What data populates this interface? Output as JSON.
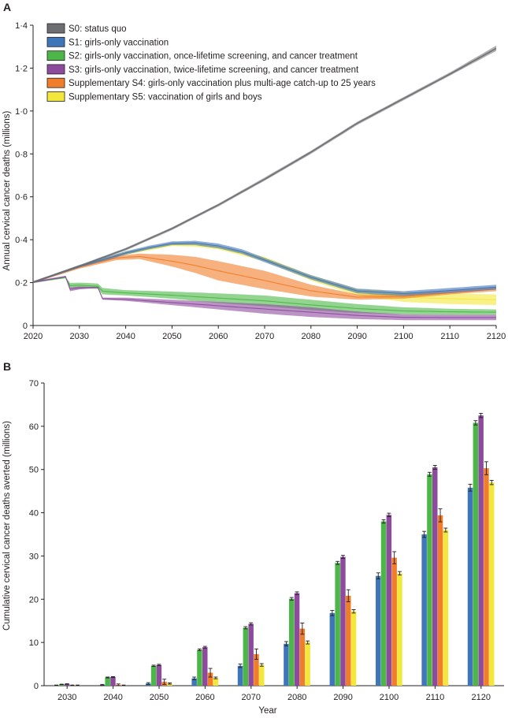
{
  "figure": {
    "colors": {
      "S0": "#6d6e71",
      "S1": "#3f75b9",
      "S2": "#4cb748",
      "S3": "#8e4b9e",
      "S4": "#f07d2a",
      "S5": "#f3e73c",
      "axis": "#231f20"
    }
  },
  "chart_data": [
    {
      "panel": "A",
      "type": "area",
      "title": "",
      "xlabel": "",
      "ylabel": "Annual cervical cancer deaths (millions)",
      "xlim": [
        2020,
        2120
      ],
      "ylim": [
        0,
        1.4
      ],
      "xticks": [
        "2020",
        "2030",
        "2040",
        "2050",
        "2060",
        "2070",
        "2080",
        "2090",
        "2100",
        "2110",
        "2120"
      ],
      "yticks": [
        "0",
        "0·2",
        "0·4",
        "0·6",
        "0·8",
        "1·0",
        "1·2",
        "1·4"
      ],
      "legend": {
        "placement": "top-left"
      },
      "series": [
        {
          "key": "S0",
          "name": "S0: status quo",
          "x": [
            2020,
            2030,
            2040,
            2050,
            2060,
            2070,
            2080,
            2090,
            2100,
            2110,
            2120
          ],
          "lower": [
            0.198,
            0.272,
            0.35,
            0.445,
            0.555,
            0.675,
            0.8,
            0.935,
            1.05,
            1.165,
            1.28
          ],
          "upper": [
            0.206,
            0.282,
            0.362,
            0.458,
            0.568,
            0.69,
            0.815,
            0.95,
            1.065,
            1.18,
            1.305
          ],
          "mid": [
            0.202,
            0.277,
            0.356,
            0.452,
            0.562,
            0.682,
            0.808,
            0.943,
            1.058,
            1.172,
            1.292
          ]
        },
        {
          "key": "S1",
          "name": "S1: girls-only vaccination",
          "x": [
            2020,
            2030,
            2040,
            2045,
            2050,
            2055,
            2060,
            2065,
            2070,
            2080,
            2090,
            2100,
            2110,
            2120
          ],
          "lower": [
            0.198,
            0.27,
            0.33,
            0.355,
            0.375,
            0.375,
            0.36,
            0.335,
            0.295,
            0.215,
            0.15,
            0.138,
            0.152,
            0.168
          ],
          "upper": [
            0.206,
            0.282,
            0.346,
            0.372,
            0.392,
            0.395,
            0.382,
            0.356,
            0.315,
            0.235,
            0.172,
            0.16,
            0.175,
            0.19
          ],
          "mid": [
            0.202,
            0.276,
            0.338,
            0.363,
            0.383,
            0.385,
            0.371,
            0.345,
            0.305,
            0.225,
            0.161,
            0.149,
            0.163,
            0.179
          ]
        },
        {
          "key": "S2",
          "name": "S2: girls-only vaccination, once-lifetime screening, and cancer treatment",
          "x": [
            2020,
            2027,
            2028,
            2030,
            2034,
            2035,
            2040,
            2050,
            2060,
            2070,
            2080,
            2090,
            2100,
            2110,
            2120
          ],
          "lower": [
            0.198,
            0.22,
            0.175,
            0.175,
            0.17,
            0.145,
            0.14,
            0.125,
            0.105,
            0.09,
            0.072,
            0.058,
            0.052,
            0.05,
            0.05
          ],
          "upper": [
            0.206,
            0.228,
            0.198,
            0.2,
            0.196,
            0.175,
            0.165,
            0.158,
            0.15,
            0.14,
            0.12,
            0.1,
            0.085,
            0.078,
            0.075
          ],
          "mid": [
            0.202,
            0.224,
            0.186,
            0.188,
            0.183,
            0.16,
            0.152,
            0.141,
            0.128,
            0.115,
            0.096,
            0.079,
            0.068,
            0.064,
            0.062
          ]
        },
        {
          "key": "S3",
          "name": "S3: girls-only vaccination, twice-lifetime screening, and cancer treatment",
          "x": [
            2020,
            2027,
            2028,
            2030,
            2034,
            2035,
            2040,
            2050,
            2060,
            2070,
            2080,
            2090,
            2100,
            2110,
            2120
          ],
          "lower": [
            0.198,
            0.225,
            0.16,
            0.168,
            0.175,
            0.12,
            0.115,
            0.095,
            0.075,
            0.055,
            0.04,
            0.03,
            0.025,
            0.025,
            0.025
          ],
          "upper": [
            0.206,
            0.232,
            0.178,
            0.182,
            0.18,
            0.13,
            0.13,
            0.12,
            0.11,
            0.1,
            0.085,
            0.065,
            0.052,
            0.05,
            0.05
          ],
          "mid": [
            0.202,
            0.228,
            0.169,
            0.175,
            0.178,
            0.125,
            0.122,
            0.107,
            0.092,
            0.077,
            0.062,
            0.047,
            0.038,
            0.037,
            0.037
          ]
        },
        {
          "key": "S4",
          "name": "Supplementary S4: girls-only vaccination plus multi-age catch-up to 25 years",
          "x": [
            2020,
            2030,
            2038,
            2043,
            2050,
            2055,
            2060,
            2070,
            2080,
            2090,
            2100,
            2110,
            2120
          ],
          "lower": [
            0.198,
            0.265,
            0.305,
            0.31,
            0.275,
            0.245,
            0.21,
            0.17,
            0.135,
            0.12,
            0.125,
            0.145,
            0.16
          ],
          "upper": [
            0.206,
            0.28,
            0.325,
            0.335,
            0.33,
            0.32,
            0.3,
            0.255,
            0.19,
            0.145,
            0.145,
            0.162,
            0.18
          ],
          "mid": [
            0.202,
            0.272,
            0.315,
            0.322,
            0.3,
            0.28,
            0.255,
            0.21,
            0.162,
            0.132,
            0.135,
            0.152,
            0.17
          ]
        },
        {
          "key": "S5",
          "name": "Supplementary S5: vaccination of girls and boys",
          "x": [
            2020,
            2030,
            2040,
            2050,
            2055,
            2060,
            2070,
            2080,
            2090,
            2100,
            2110,
            2120
          ],
          "lower": [
            0.198,
            0.27,
            0.33,
            0.37,
            0.368,
            0.355,
            0.3,
            0.21,
            0.14,
            0.11,
            0.1,
            0.095
          ],
          "upper": [
            0.206,
            0.28,
            0.345,
            0.385,
            0.385,
            0.372,
            0.32,
            0.235,
            0.17,
            0.155,
            0.15,
            0.145
          ],
          "mid": [
            0.202,
            0.275,
            0.337,
            0.377,
            0.376,
            0.363,
            0.31,
            0.222,
            0.155,
            0.132,
            0.125,
            0.12
          ]
        }
      ]
    },
    {
      "panel": "B",
      "type": "bar",
      "title": "",
      "xlabel": "Year",
      "ylabel": "Cumulative cervical cancer deaths averted (millions)",
      "ylim": [
        0,
        70
      ],
      "yticks": [
        "0",
        "10",
        "20",
        "30",
        "40",
        "50",
        "60",
        "70"
      ],
      "categories": [
        "2030",
        "2040",
        "2050",
        "2060",
        "2070",
        "2080",
        "2090",
        "2100",
        "2110",
        "2120"
      ],
      "series": [
        {
          "key": "S1",
          "name": "S1",
          "values": [
            0.1,
            0.2,
            0.5,
            1.7,
            4.6,
            9.7,
            16.8,
            25.4,
            35.0,
            45.8
          ],
          "errors": [
            0.05,
            0.1,
            0.2,
            0.3,
            0.4,
            0.5,
            0.6,
            0.7,
            0.7,
            0.8
          ]
        },
        {
          "key": "S2",
          "name": "S2",
          "values": [
            0.3,
            1.9,
            4.6,
            8.3,
            13.4,
            20.1,
            28.4,
            38.0,
            48.9,
            60.8
          ],
          "errors": [
            0.05,
            0.1,
            0.15,
            0.2,
            0.25,
            0.3,
            0.35,
            0.4,
            0.45,
            0.5
          ]
        },
        {
          "key": "S3",
          "name": "S3",
          "values": [
            0.4,
            2.0,
            4.8,
            8.9,
            14.3,
            21.4,
            29.8,
            39.5,
            50.5,
            62.5
          ],
          "errors": [
            0.05,
            0.1,
            0.15,
            0.2,
            0.25,
            0.3,
            0.35,
            0.4,
            0.45,
            0.5
          ]
        },
        {
          "key": "S4",
          "name": "S4",
          "values": [
            0.1,
            0.2,
            0.9,
            3.0,
            7.3,
            13.2,
            20.8,
            29.6,
            39.4,
            50.3
          ],
          "errors": [
            0.05,
            0.2,
            0.6,
            1.0,
            1.2,
            1.3,
            1.4,
            1.4,
            1.5,
            1.5
          ]
        },
        {
          "key": "S5",
          "name": "S5",
          "values": [
            0.1,
            0.1,
            0.5,
            1.8,
            4.8,
            10.0,
            17.2,
            26.0,
            36.0,
            47.0
          ],
          "errors": [
            0.05,
            0.05,
            0.15,
            0.2,
            0.3,
            0.35,
            0.4,
            0.4,
            0.45,
            0.5
          ]
        }
      ]
    }
  ]
}
